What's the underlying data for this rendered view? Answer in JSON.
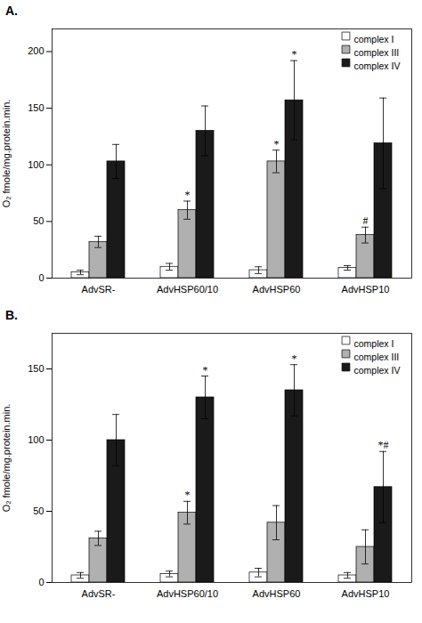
{
  "chart_data": [
    {
      "type": "bar",
      "title": "A.",
      "categories": [
        "AdvSR-",
        "AdvHSP60/10",
        "AdvHSP60",
        "AdvHSP10"
      ],
      "series": [
        {
          "name": "complex I",
          "color": "#ffffff",
          "values": [
            5,
            10,
            7,
            9
          ],
          "errors": [
            2,
            3,
            3,
            2
          ]
        },
        {
          "name": "complex III",
          "color": "#b0b0b0",
          "values": [
            32,
            60,
            103,
            38
          ],
          "errors": [
            5,
            8,
            10,
            7
          ],
          "annotations": [
            null,
            "*",
            "*",
            "#"
          ]
        },
        {
          "name": "complex IV",
          "color": "#1a1a1a",
          "values": [
            103,
            130,
            157,
            119
          ],
          "errors": [
            15,
            22,
            35,
            40
          ],
          "annotations": [
            null,
            null,
            "*",
            null
          ]
        }
      ],
      "ylabel": "O₂ fmole/mg.protein.min.",
      "ylim": [
        0,
        220
      ],
      "yticks": [
        0,
        50,
        100,
        150,
        200
      ],
      "legend": "upper right",
      "grid": false
    },
    {
      "type": "bar",
      "title": "B.",
      "categories": [
        "AdvSR-",
        "AdvHSP60/10",
        "AdvHSP60",
        "AdvHSP10"
      ],
      "series": [
        {
          "name": "complex I",
          "color": "#ffffff",
          "values": [
            5,
            6,
            7,
            5
          ],
          "errors": [
            2,
            2,
            3,
            2
          ]
        },
        {
          "name": "complex III",
          "color": "#b0b0b0",
          "values": [
            31,
            49,
            42,
            25
          ],
          "errors": [
            5,
            8,
            12,
            12
          ],
          "annotations": [
            null,
            "*",
            null,
            null
          ]
        },
        {
          "name": "complex IV",
          "color": "#1a1a1a",
          "values": [
            100,
            130,
            135,
            67
          ],
          "errors": [
            18,
            15,
            18,
            25
          ],
          "annotations": [
            null,
            "*",
            "*",
            "*#"
          ]
        }
      ],
      "ylabel": "O₂ fmole/mg.protein.min.",
      "ylim": [
        0,
        175
      ],
      "yticks": [
        0,
        50,
        100,
        150
      ],
      "legend": "upper right",
      "grid": false
    }
  ]
}
